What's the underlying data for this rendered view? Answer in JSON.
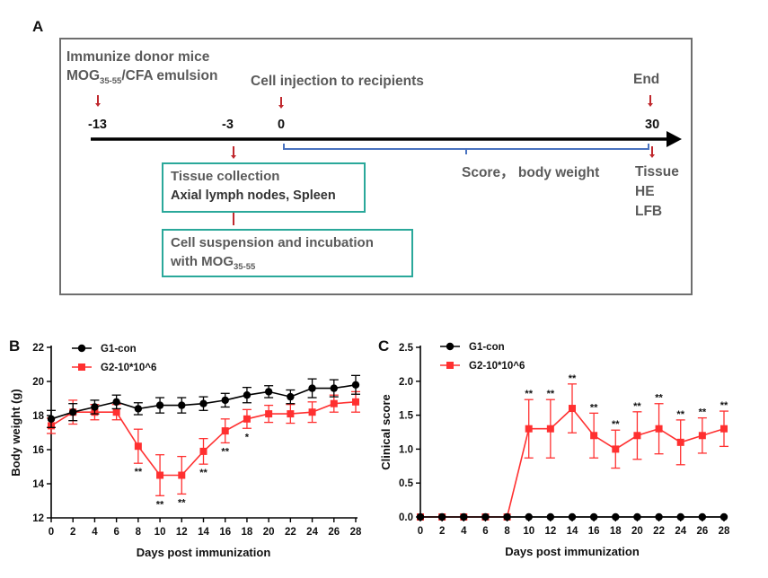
{
  "panel_a": {
    "letter": "A",
    "donor_line1": "Immunize donor mice",
    "donor_mog": "MOG",
    "donor_sub": "35-55",
    "donor_rest": "/CFA emulsion",
    "injection_label": "Cell injection to recipients",
    "end_label": "End",
    "ticks": [
      "-13",
      "-3",
      "0",
      "30"
    ],
    "score_label": "Score， body weight",
    "tissue_list": [
      "Tissue",
      "HE",
      "LFB"
    ],
    "box1_title": "Tissue collection",
    "box1_sub": "Axial lymph nodes, Spleen",
    "box2_line1": "Cell suspension and incubation",
    "box2_line2": "with MOG",
    "box2_sub": "35-55",
    "colors": {
      "arrow_red": "#c0282d",
      "box_border": "#2aa89a",
      "bracket_blue": "#4a73c0",
      "frame_gray": "#6e6e6e"
    }
  },
  "chart_data": [
    {
      "panel": "B",
      "type": "line",
      "xlabel": "Days post immunization",
      "ylabel": "Body weight (g)",
      "xlim": [
        0,
        28
      ],
      "ylim": [
        12,
        22
      ],
      "x_ticks": [
        "0",
        "2",
        "4",
        "6",
        "8",
        "10",
        "12",
        "14",
        "16",
        "18",
        "20",
        "22",
        "24",
        "26",
        "28"
      ],
      "y_ticks": [
        "12",
        "14",
        "16",
        "18",
        "20",
        "22"
      ],
      "x": [
        0,
        2,
        4,
        6,
        8,
        10,
        12,
        14,
        16,
        18,
        20,
        22,
        24,
        26,
        28
      ],
      "legend_position": "top-left",
      "series": [
        {
          "name": "G1-con",
          "color": "#000000",
          "marker": "circle",
          "values": [
            17.8,
            18.2,
            18.5,
            18.8,
            18.4,
            18.6,
            18.6,
            18.7,
            18.9,
            19.2,
            19.4,
            19.1,
            19.6,
            19.6,
            19.8
          ],
          "errors": [
            0.5,
            0.5,
            0.4,
            0.4,
            0.35,
            0.45,
            0.45,
            0.4,
            0.4,
            0.45,
            0.35,
            0.4,
            0.55,
            0.5,
            0.55
          ]
        },
        {
          "name": "G2-10*10^6",
          "color": "#ff3030",
          "marker": "square",
          "values": [
            17.4,
            18.2,
            18.2,
            18.2,
            16.2,
            14.5,
            14.5,
            15.9,
            17.1,
            17.8,
            18.1,
            18.1,
            18.2,
            18.7,
            18.8
          ],
          "errors": [
            0.45,
            0.7,
            0.45,
            0.45,
            1.0,
            1.2,
            1.1,
            0.75,
            0.7,
            0.55,
            0.5,
            0.55,
            0.6,
            0.5,
            0.6
          ]
        }
      ],
      "significance": [
        {
          "x": 8,
          "label": "**"
        },
        {
          "x": 10,
          "label": "**"
        },
        {
          "x": 12,
          "label": "**"
        },
        {
          "x": 14,
          "label": "**"
        },
        {
          "x": 16,
          "label": "**"
        },
        {
          "x": 18,
          "label": "*"
        }
      ]
    },
    {
      "panel": "C",
      "type": "line",
      "xlabel": "Days post immunization",
      "ylabel": "Clinical score",
      "xlim": [
        0,
        28
      ],
      "ylim": [
        0,
        2.5
      ],
      "x_ticks": [
        "0",
        "2",
        "4",
        "6",
        "8",
        "10",
        "12",
        "14",
        "16",
        "18",
        "20",
        "22",
        "24",
        "26",
        "28"
      ],
      "y_ticks": [
        "0.0",
        "0.5",
        "1.0",
        "1.5",
        "2.0",
        "2.5"
      ],
      "x": [
        0,
        2,
        4,
        6,
        8,
        10,
        12,
        14,
        16,
        18,
        20,
        22,
        24,
        26,
        28
      ],
      "legend_position": "top-left",
      "series": [
        {
          "name": "G1-con",
          "color": "#000000",
          "marker": "circle",
          "values": [
            0,
            0,
            0,
            0,
            0,
            0,
            0,
            0,
            0,
            0,
            0,
            0,
            0,
            0,
            0
          ],
          "errors": [
            0,
            0,
            0,
            0,
            0,
            0,
            0,
            0,
            0,
            0,
            0,
            0,
            0,
            0,
            0
          ]
        },
        {
          "name": "G2-10*10^6",
          "color": "#ff3030",
          "marker": "square",
          "values": [
            0,
            0,
            0,
            0,
            0,
            1.3,
            1.3,
            1.6,
            1.2,
            1.0,
            1.2,
            1.3,
            1.1,
            1.2,
            1.3
          ],
          "errors": [
            0,
            0,
            0,
            0,
            0,
            0.43,
            0.43,
            0.36,
            0.33,
            0.28,
            0.35,
            0.37,
            0.33,
            0.26,
            0.26
          ]
        }
      ],
      "significance": [
        {
          "x": 10,
          "label": "**"
        },
        {
          "x": 12,
          "label": "**"
        },
        {
          "x": 14,
          "label": "**"
        },
        {
          "x": 16,
          "label": "**"
        },
        {
          "x": 18,
          "label": "**"
        },
        {
          "x": 20,
          "label": "**"
        },
        {
          "x": 22,
          "label": "**"
        },
        {
          "x": 24,
          "label": "**"
        },
        {
          "x": 26,
          "label": "**"
        },
        {
          "x": 28,
          "label": "**"
        }
      ]
    }
  ]
}
